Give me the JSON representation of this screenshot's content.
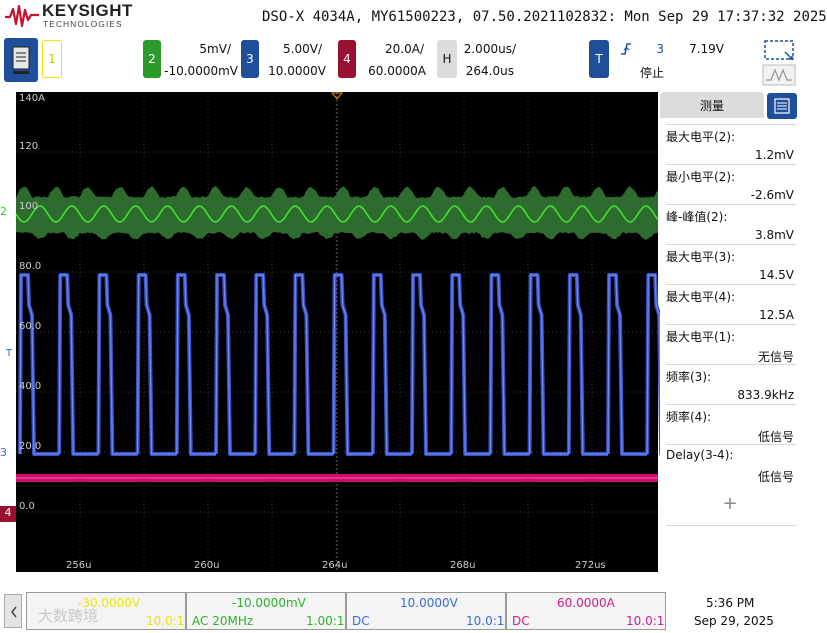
{
  "brand": {
    "name": "KEYSIGHT",
    "sub": "TECHNOLOGIES"
  },
  "instrument_info": "DSO-X 4034A, MY61500223, 07.50.2021102832: Mon Sep 29 17:37:32 2025",
  "channels": {
    "ch1": {
      "num": "1",
      "color": "#e8e800"
    },
    "ch2": {
      "num": "2",
      "scale": "5mV/",
      "offset": "-10.0000mV",
      "color": "#2a9a2a"
    },
    "ch3": {
      "num": "3",
      "scale": "5.00V/",
      "offset": "10.0000V",
      "color": "#1f4f9a"
    },
    "ch4": {
      "num": "4",
      "scale": "20.0A/",
      "offset": "60.0000A",
      "color": "#9a1030"
    }
  },
  "horizontal": {
    "label": "H",
    "scale": "2.000us/",
    "position": "264.0us"
  },
  "trigger": {
    "label": "T",
    "source": "3",
    "level": "7.19V",
    "status": "停止"
  },
  "plot": {
    "y_labels": [
      "140A",
      "120",
      "100",
      "80.0",
      "60.0",
      "40.0",
      "20.0",
      "0.0"
    ],
    "x_labels": [
      "256u",
      "260u",
      "264u",
      "268u",
      "272us"
    ],
    "markers": {
      "ch2": "2",
      "ch3": "3",
      "ch4": "4",
      "trig": "T"
    }
  },
  "panel": {
    "tab": "测量",
    "add": "+",
    "measurements": [
      {
        "name": "最大电平(2):",
        "value": "1.2mV"
      },
      {
        "name": "最小电平(2):",
        "value": "-2.6mV"
      },
      {
        "name": "峰-峰值(2):",
        "value": "3.8mV"
      },
      {
        "name": "最大电平(3):",
        "value": "14.5V"
      },
      {
        "name": "最大电平(4):",
        "value": "12.5A"
      },
      {
        "name": "最大电平(1):",
        "value": "无信号"
      },
      {
        "name": "频率(3):",
        "value": "833.9kHz"
      },
      {
        "name": "频率(4):",
        "value": "低信号"
      },
      {
        "name": "Delay(3-4):",
        "value": "低信号"
      }
    ]
  },
  "bottom": {
    "ch1": {
      "offset": "-30.0000V",
      "ratio": "10.0:1"
    },
    "ch2": {
      "offset": "-10.0000mV",
      "coupling": "AC 20MHz",
      "ratio": "1.00:1"
    },
    "ch3": {
      "offset": "10.0000V",
      "coupling": "DC",
      "ratio": "10.0:1"
    },
    "ch4": {
      "offset": "60.0000A",
      "coupling": "DC",
      "ratio": "10.0:1"
    },
    "watermark": "大数跨境",
    "time": "5:36 PM",
    "date": "Sep 29, 2025"
  }
}
